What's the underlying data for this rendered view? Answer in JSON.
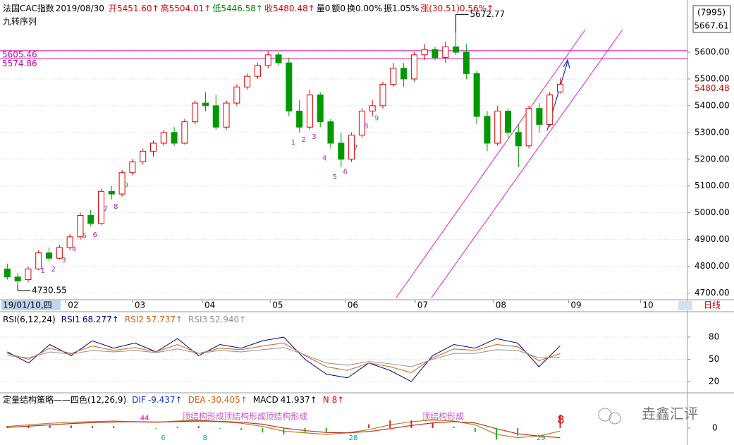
{
  "header": [
    {
      "text": "法国CAC指数",
      "color": "#000000"
    },
    {
      "text": "2019/08/30",
      "color": "#000000"
    },
    {
      "text": "开5451.60↑",
      "color": "#e00000"
    },
    {
      "text": "高5504.01↑",
      "color": "#e00000"
    },
    {
      "text": "低5446.58↑",
      "color": "#008000"
    },
    {
      "text": "收5480.48↑",
      "color": "#e00000"
    },
    {
      "text": "量0",
      "color": "#000000"
    },
    {
      "text": "额0",
      "color": "#000000"
    },
    {
      "text": "换0.00%",
      "color": "#000000"
    },
    {
      "text": "振1.05%",
      "color": "#000000"
    },
    {
      "text": "涨(30.51)0.56%↑",
      "color": "#e00000"
    }
  ],
  "subtitle": "九转序列",
  "code": "(7995)",
  "price_box": 5667.61,
  "period": "日线",
  "watermark": "垚鑫汇评",
  "chart_data": [
    {
      "type": "candlestick",
      "up_color": "#e00000",
      "down_color": "#009900",
      "open": [
        4790,
        4760,
        4750,
        4790,
        4850,
        4830,
        4870,
        4910,
        4990,
        4960,
        5080,
        5070,
        5150,
        5190,
        5230,
        5260,
        5300,
        5260,
        5340,
        5410,
        5400,
        5320,
        5410,
        5470,
        5510,
        5550,
        5590,
        5560,
        5380,
        5320,
        5440,
        5340,
        5260,
        5200,
        5290,
        5380,
        5400,
        5480,
        5540,
        5500,
        5590,
        5610,
        5580,
        5620,
        5600,
        5520,
        5360,
        5260,
        5380,
        5300,
        5250,
        5390,
        5330,
        5451.6
      ],
      "high": [
        4810,
        4775,
        4800,
        4860,
        4870,
        4880,
        4920,
        5000,
        5010,
        5090,
        5100,
        5160,
        5200,
        5240,
        5270,
        5310,
        5320,
        5350,
        5420,
        5450,
        5440,
        5420,
        5480,
        5520,
        5560,
        5605,
        5600,
        5580,
        5420,
        5460,
        5450,
        5350,
        5300,
        5300,
        5390,
        5420,
        5490,
        5560,
        5560,
        5600,
        5630,
        5620,
        5640,
        5672.77,
        5630,
        5530,
        5380,
        5400,
        5390,
        5330,
        5400,
        5410,
        5450,
        5504.01
      ],
      "low": [
        4750,
        4730.55,
        4740,
        4785,
        4820,
        4825,
        4860,
        4900,
        4950,
        4955,
        5050,
        5060,
        5140,
        5180,
        5210,
        5250,
        5250,
        5255,
        5330,
        5380,
        5310,
        5310,
        5400,
        5460,
        5500,
        5540,
        5550,
        5360,
        5300,
        5310,
        5320,
        5240,
        5170,
        5190,
        5280,
        5360,
        5390,
        5470,
        5470,
        5490,
        5570,
        5570,
        5560,
        5590,
        5500,
        5330,
        5230,
        5250,
        5280,
        5170,
        5240,
        5300,
        5320,
        5446.58
      ],
      "close": [
        4760,
        4745,
        4790,
        4850,
        4830,
        4870,
        4910,
        4990,
        4960,
        5080,
        5070,
        5150,
        5190,
        5230,
        5260,
        5300,
        5260,
        5340,
        5410,
        5400,
        5320,
        5410,
        5470,
        5510,
        5550,
        5590,
        5560,
        5380,
        5320,
        5440,
        5340,
        5260,
        5200,
        5290,
        5380,
        5400,
        5480,
        5540,
        5500,
        5590,
        5610,
        5580,
        5620,
        5600,
        5520,
        5360,
        5260,
        5380,
        5300,
        5250,
        5390,
        5330,
        5440,
        5480.48
      ],
      "xlim": [
        -0.7,
        65.2
      ],
      "ylim": [
        4675,
        5795
      ],
      "xticks": [
        {
          "value": 0,
          "label": "19/01/10,四"
        },
        {
          "value": 5.6,
          "label": "02"
        },
        {
          "value": 12,
          "label": "03"
        },
        {
          "value": 18.7,
          "label": "04"
        },
        {
          "value": 25.2,
          "label": "05"
        },
        {
          "value": 32.4,
          "label": "06"
        },
        {
          "value": 39.1,
          "label": "07"
        },
        {
          "value": 46.6,
          "label": "08"
        },
        {
          "value": 53.8,
          "label": "09"
        },
        {
          "value": 60.7,
          "label": "10"
        }
      ],
      "yticks": [
        {
          "value": 4700,
          "label": "4700.00"
        },
        {
          "value": 4800,
          "label": "4800.00"
        },
        {
          "value": 4900,
          "label": "4900.00"
        },
        {
          "value": 5000,
          "label": "5000.00"
        },
        {
          "value": 5100,
          "label": "5100.00"
        },
        {
          "value": 5200,
          "label": "5200.00"
        },
        {
          "value": 5300,
          "label": "5300.00"
        },
        {
          "value": 5400,
          "label": "5400.00"
        },
        {
          "value": 5500,
          "label": "5500.00"
        },
        {
          "value": 5600,
          "label": "5600.00"
        }
      ],
      "levels": [
        5605.46,
        5574.86
      ],
      "level_color": "#cc00aa",
      "td_sequence": [
        {
          "candle": 4,
          "label": "1"
        },
        {
          "candle": 5,
          "label": "2"
        },
        {
          "candle": 6,
          "label": "3"
        },
        {
          "candle": 7,
          "label": "4"
        },
        {
          "candle": 8,
          "label": "5"
        },
        {
          "candle": 9,
          "label": "6"
        },
        {
          "candle": 10,
          "label": "7"
        },
        {
          "candle": 11,
          "label": "8"
        },
        {
          "candle": 12,
          "label": "9"
        },
        {
          "candle": 28,
          "label": "1"
        },
        {
          "candle": 29,
          "label": "2"
        },
        {
          "candle": 30,
          "label": "3"
        },
        {
          "candle": 31,
          "label": "4"
        },
        {
          "candle": 32,
          "label": "5"
        },
        {
          "candle": 33,
          "label": "6"
        },
        {
          "candle": 34,
          "label": "7"
        },
        {
          "candle": 35,
          "label": "8"
        },
        {
          "candle": 36,
          "label": "9"
        }
      ]
    },
    {
      "type": "line",
      "title": "RSI(6,12,24)",
      "xlim": [
        -0.7,
        65.2
      ],
      "ylim": [
        6.7,
        109.5
      ],
      "yticks": [
        20,
        50,
        80
      ],
      "series": [
        {
          "name": "RSI1",
          "color": "#000080",
          "value_label": "68.277↑",
          "values": [
            60,
            45,
            70,
            55,
            75,
            65,
            72,
            60,
            78,
            55,
            70,
            65,
            75,
            80,
            50,
            30,
            25,
            45,
            35,
            20,
            55,
            70,
            65,
            78,
            72,
            40,
            68.277
          ]
        },
        {
          "name": "RSI2",
          "color": "#d06010",
          "value_label": "57.737↑",
          "values": [
            58,
            50,
            65,
            58,
            68,
            62,
            66,
            60,
            70,
            58,
            65,
            63,
            68,
            72,
            55,
            40,
            35,
            45,
            40,
            32,
            52,
            64,
            62,
            70,
            67,
            48,
            57.737
          ]
        },
        {
          "name": "RSI3",
          "color": "#909090",
          "value_label": "52.940↑",
          "values": [
            55,
            52,
            60,
            57,
            62,
            60,
            62,
            59,
            64,
            58,
            62,
            60,
            63,
            66,
            56,
            45,
            42,
            47,
            44,
            40,
            50,
            58,
            58,
            63,
            62,
            52,
            52.94
          ]
        }
      ]
    },
    {
      "type": "macd",
      "title": "定量结构策略——四色(12,26,9)",
      "xlim": [
        -0.7,
        65.2
      ],
      "ylim": [
        -40,
        104
      ],
      "yticks": [
        0
      ],
      "series": [
        {
          "name": "DIF",
          "color": "#1030d0",
          "value_label": "-9.437↑",
          "values": [
            5,
            10,
            15,
            18,
            20,
            22,
            20,
            18,
            22,
            25,
            20,
            15,
            5,
            -10,
            -15,
            -20,
            -15,
            -5,
            10,
            20,
            25,
            22,
            10,
            -20,
            -30,
            -25,
            -9.437
          ]
        },
        {
          "name": "DEA",
          "color": "#d06010",
          "value_label": "-30.405↑",
          "values": [
            2,
            6,
            10,
            14,
            17,
            19,
            20,
            19,
            20,
            22,
            21,
            18,
            12,
            0,
            -8,
            -14,
            -15,
            -11,
            -2,
            8,
            16,
            20,
            16,
            -2,
            -18,
            -25,
            -30.405
          ]
        },
        {
          "name": "MACD",
          "color": "#000000",
          "value_label": "41.937↑",
          "values": [
            6,
            8,
            10,
            8,
            6,
            6,
            0,
            -2,
            4,
            6,
            -2,
            -6,
            -14,
            -20,
            -14,
            -12,
            0,
            12,
            24,
            24,
            18,
            4,
            -12,
            -36,
            -24,
            0,
            41.937
          ]
        }
      ],
      "extra": {
        "text": "N 8↑",
        "color": "#e00000"
      },
      "notes": [
        {
          "text": "顶结构形成",
          "candle": 17,
          "color": "#cc55cc"
        },
        {
          "text": "顶结构形成",
          "candle": 21,
          "color": "#cc55cc"
        },
        {
          "text": "顶结构形成",
          "candle": 25,
          "color": "#cc55cc"
        },
        {
          "text": "顶结构形成",
          "candle": 40,
          "color": "#cc55cc"
        },
        {
          "text": "44",
          "candle": 13,
          "color": "#cc00aa"
        },
        {
          "text": "6",
          "candle": 15,
          "color": "#00aaaa"
        },
        {
          "text": "8",
          "candle": 19,
          "color": "#00aaaa"
        },
        {
          "text": "28",
          "candle": 33,
          "color": "#00aaaa"
        },
        {
          "text": "29",
          "candle": 51,
          "color": "#00aaaa"
        },
        {
          "text": "8",
          "candle": 53,
          "color": "#e00000"
        }
      ]
    }
  ]
}
